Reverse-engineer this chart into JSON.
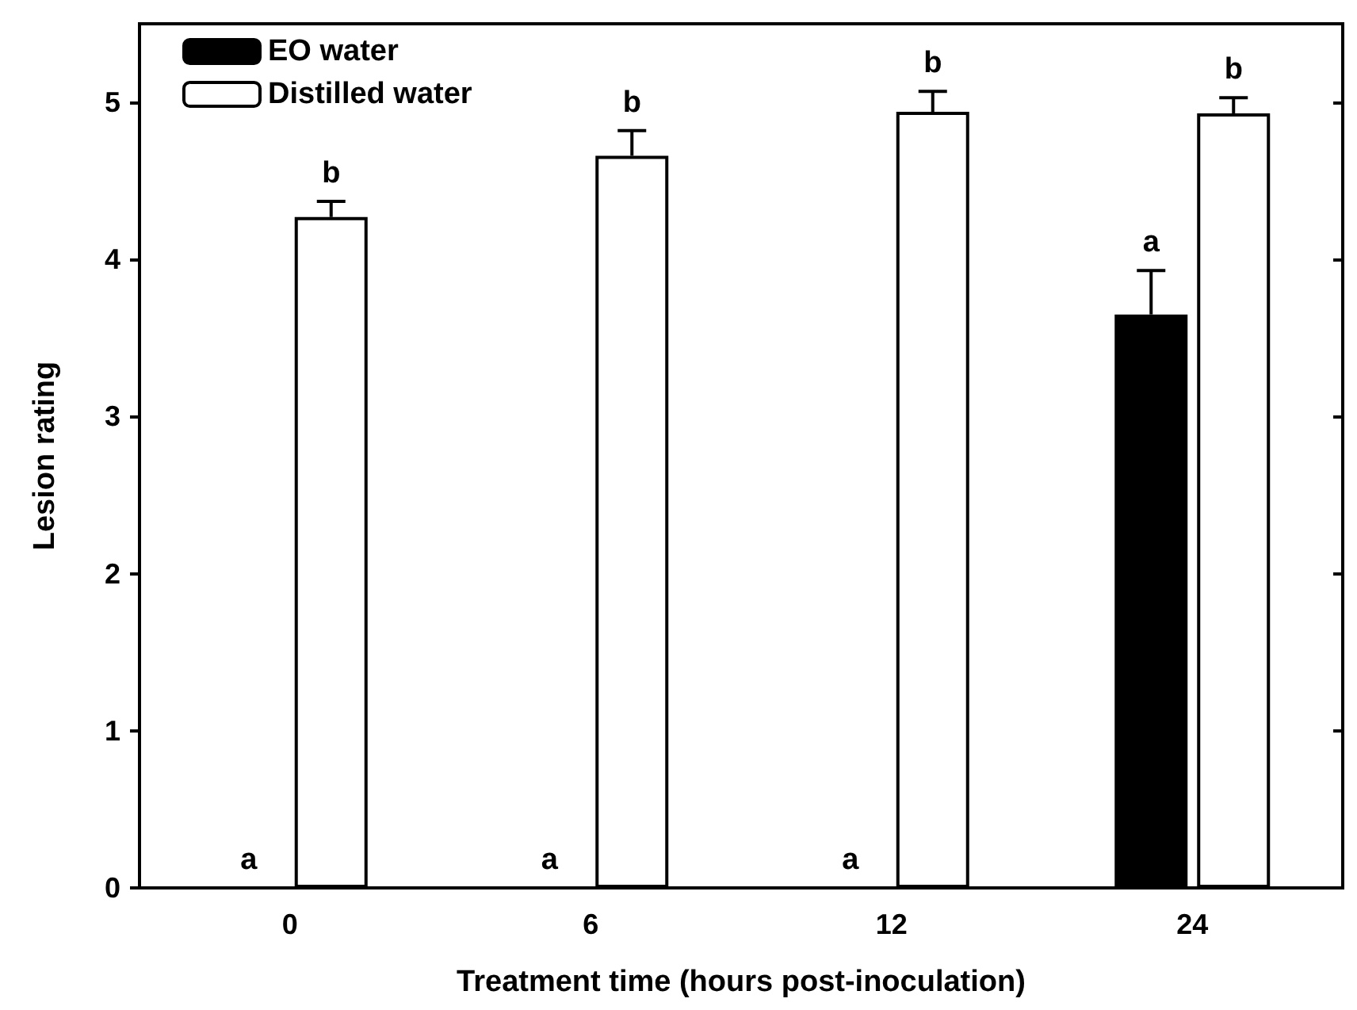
{
  "chart_data": {
    "type": "bar",
    "xlabel": "Treatment time (hours post-inoculation)",
    "ylabel": "Lesion rating",
    "categories": [
      "0",
      "6",
      "12",
      "24"
    ],
    "series": [
      {
        "name": "EO water",
        "color": "#000000",
        "values": [
          0,
          0,
          0,
          3.65
        ],
        "errors": [
          null,
          null,
          null,
          [
            3.65,
            3.93
          ]
        ]
      },
      {
        "name": "Distilled water",
        "color": "#ffffff",
        "values": [
          4.27,
          4.66,
          4.94,
          4.93
        ],
        "errors": [
          [
            4.27,
            4.37
          ],
          [
            4.66,
            4.82
          ],
          [
            4.94,
            5.07
          ],
          [
            4.93,
            5.03
          ]
        ]
      }
    ],
    "ylim": [
      0,
      5.5
    ],
    "yticks": [
      0,
      1,
      2,
      3,
      4,
      5
    ],
    "annotations": [
      {
        "text": "a",
        "x": "0",
        "y": 0
      },
      {
        "text": "b",
        "x": "0",
        "y": 4.27
      },
      {
        "text": "a",
        "x": "6",
        "y": 0
      },
      {
        "text": "b",
        "x": "6",
        "y": 4.66
      },
      {
        "text": "a",
        "x": "12",
        "y": 0
      },
      {
        "text": "b",
        "x": "12",
        "y": 4.94
      },
      {
        "text": "a",
        "x": "24",
        "y": 3.65
      },
      {
        "text": "b",
        "x": "24",
        "y": 4.93
      }
    ],
    "legend": "top left",
    "grid": false
  }
}
